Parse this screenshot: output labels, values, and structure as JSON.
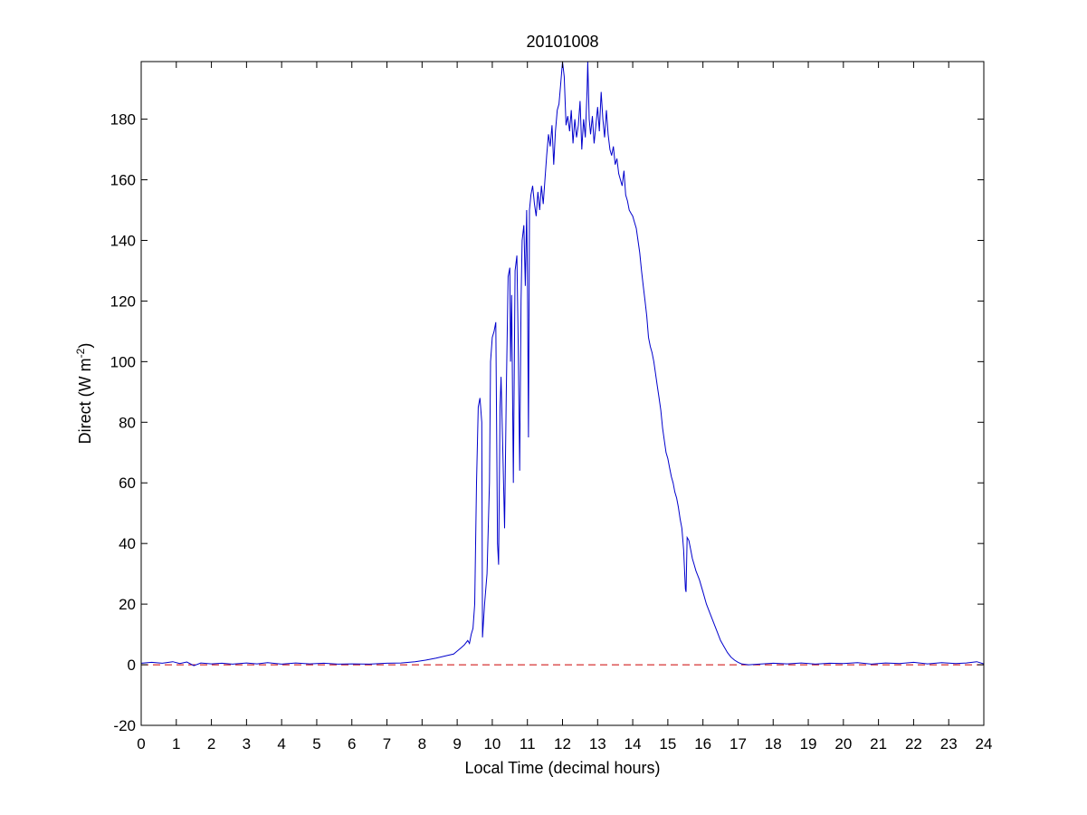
{
  "chart_data": {
    "type": "line",
    "title": "20101008",
    "xlabel": "Local Time (decimal hours)",
    "ylabel_main": "Direct (W m",
    "ylabel_superscript": "-2",
    "ylabel_close": ")",
    "xlim": [
      0,
      24
    ],
    "ylim": [
      -20,
      199
    ],
    "x_ticks": [
      0,
      1,
      2,
      3,
      4,
      5,
      6,
      7,
      8,
      9,
      10,
      11,
      12,
      13,
      14,
      15,
      16,
      17,
      18,
      19,
      20,
      21,
      22,
      23,
      24
    ],
    "y_ticks": [
      -20,
      0,
      20,
      40,
      60,
      80,
      100,
      120,
      140,
      160,
      180
    ],
    "grid": false,
    "series": [
      {
        "color": "#0000cc",
        "style": "solid",
        "points": [
          [
            0.0,
            0.5
          ],
          [
            0.3,
            0.8
          ],
          [
            0.6,
            0.5
          ],
          [
            0.9,
            1.0
          ],
          [
            1.1,
            0.4
          ],
          [
            1.3,
            0.9
          ],
          [
            1.5,
            -0.3
          ],
          [
            1.7,
            0.6
          ],
          [
            2.0,
            0.3
          ],
          [
            2.3,
            0.5
          ],
          [
            2.6,
            0.2
          ],
          [
            3.0,
            0.6
          ],
          [
            3.3,
            0.3
          ],
          [
            3.6,
            0.7
          ],
          [
            4.0,
            0.2
          ],
          [
            4.4,
            0.6
          ],
          [
            4.8,
            0.3
          ],
          [
            5.2,
            0.5
          ],
          [
            5.6,
            0.2
          ],
          [
            6.0,
            0.3
          ],
          [
            6.5,
            0.2
          ],
          [
            7.0,
            0.5
          ],
          [
            7.4,
            0.6
          ],
          [
            7.8,
            1.0
          ],
          [
            8.1,
            1.5
          ],
          [
            8.4,
            2.2
          ],
          [
            8.7,
            3.0
          ],
          [
            8.9,
            3.5
          ],
          [
            9.0,
            4.5
          ],
          [
            9.1,
            5.5
          ],
          [
            9.2,
            6.5
          ],
          [
            9.3,
            8.0
          ],
          [
            9.35,
            7.0
          ],
          [
            9.4,
            10.0
          ],
          [
            9.45,
            12.0
          ],
          [
            9.5,
            20.0
          ],
          [
            9.55,
            60.0
          ],
          [
            9.6,
            85.0
          ],
          [
            9.65,
            88.0
          ],
          [
            9.7,
            80.0
          ],
          [
            9.72,
            9.0
          ],
          [
            9.78,
            20.0
          ],
          [
            9.85,
            30.0
          ],
          [
            9.92,
            60.0
          ],
          [
            9.95,
            100.0
          ],
          [
            10.0,
            108.0
          ],
          [
            10.05,
            110.0
          ],
          [
            10.1,
            113.0
          ],
          [
            10.15,
            40.0
          ],
          [
            10.18,
            33.0
          ],
          [
            10.22,
            85.0
          ],
          [
            10.25,
            95.0
          ],
          [
            10.3,
            70.0
          ],
          [
            10.35,
            45.0
          ],
          [
            10.4,
            90.0
          ],
          [
            10.45,
            128.0
          ],
          [
            10.5,
            131.0
          ],
          [
            10.52,
            100.0
          ],
          [
            10.55,
            122.0
          ],
          [
            10.6,
            60.0
          ],
          [
            10.65,
            130.0
          ],
          [
            10.7,
            135.0
          ],
          [
            10.74,
            105.0
          ],
          [
            10.78,
            64.0
          ],
          [
            10.82,
            120.0
          ],
          [
            10.85,
            140.0
          ],
          [
            10.9,
            145.0
          ],
          [
            10.94,
            125.0
          ],
          [
            10.98,
            150.0
          ],
          [
            11.0,
            130.0
          ],
          [
            11.03,
            75.0
          ],
          [
            11.06,
            150.0
          ],
          [
            11.1,
            155.0
          ],
          [
            11.15,
            158.0
          ],
          [
            11.2,
            152.0
          ],
          [
            11.25,
            148.0
          ],
          [
            11.3,
            156.0
          ],
          [
            11.35,
            150.0
          ],
          [
            11.4,
            158.0
          ],
          [
            11.45,
            152.0
          ],
          [
            11.5,
            160.0
          ],
          [
            11.55,
            168.0
          ],
          [
            11.6,
            175.0
          ],
          [
            11.65,
            171.0
          ],
          [
            11.7,
            178.0
          ],
          [
            11.75,
            165.0
          ],
          [
            11.8,
            176.0
          ],
          [
            11.85,
            183.0
          ],
          [
            11.9,
            185.0
          ],
          [
            11.95,
            192.0
          ],
          [
            12.0,
            199.0
          ],
          [
            12.05,
            194.0
          ],
          [
            12.1,
            178.0
          ],
          [
            12.15,
            181.0
          ],
          [
            12.2,
            176.0
          ],
          [
            12.25,
            183.0
          ],
          [
            12.3,
            172.0
          ],
          [
            12.35,
            180.0
          ],
          [
            12.4,
            174.0
          ],
          [
            12.45,
            178.0
          ],
          [
            12.5,
            186.0
          ],
          [
            12.55,
            170.0
          ],
          [
            12.6,
            180.0
          ],
          [
            12.65,
            174.0
          ],
          [
            12.7,
            190.0
          ],
          [
            12.72,
            199.0
          ],
          [
            12.76,
            180.0
          ],
          [
            12.8,
            175.0
          ],
          [
            12.85,
            181.0
          ],
          [
            12.9,
            172.0
          ],
          [
            12.95,
            178.0
          ],
          [
            13.0,
            184.0
          ],
          [
            13.05,
            176.0
          ],
          [
            13.1,
            189.0
          ],
          [
            13.15,
            180.0
          ],
          [
            13.2,
            174.0
          ],
          [
            13.25,
            183.0
          ],
          [
            13.3,
            175.0
          ],
          [
            13.35,
            170.0
          ],
          [
            13.4,
            168.0
          ],
          [
            13.45,
            171.0
          ],
          [
            13.5,
            165.0
          ],
          [
            13.55,
            167.0
          ],
          [
            13.6,
            162.0
          ],
          [
            13.65,
            160.0
          ],
          [
            13.7,
            158.0
          ],
          [
            13.75,
            163.0
          ],
          [
            13.8,
            155.0
          ],
          [
            13.85,
            153.0
          ],
          [
            13.9,
            150.0
          ],
          [
            13.95,
            149.0
          ],
          [
            14.0,
            148.0
          ],
          [
            14.05,
            146.0
          ],
          [
            14.1,
            144.0
          ],
          [
            14.15,
            140.0
          ],
          [
            14.2,
            136.0
          ],
          [
            14.25,
            130.0
          ],
          [
            14.3,
            125.0
          ],
          [
            14.35,
            120.0
          ],
          [
            14.4,
            115.0
          ],
          [
            14.45,
            108.0
          ],
          [
            14.5,
            105.0
          ],
          [
            14.55,
            103.0
          ],
          [
            14.6,
            100.0
          ],
          [
            14.65,
            96.0
          ],
          [
            14.7,
            92.0
          ],
          [
            14.75,
            88.0
          ],
          [
            14.8,
            84.0
          ],
          [
            14.85,
            78.0
          ],
          [
            14.9,
            74.0
          ],
          [
            14.95,
            70.0
          ],
          [
            15.0,
            68.0
          ],
          [
            15.05,
            65.0
          ],
          [
            15.1,
            62.0
          ],
          [
            15.15,
            60.0
          ],
          [
            15.2,
            57.0
          ],
          [
            15.25,
            55.0
          ],
          [
            15.3,
            52.0
          ],
          [
            15.35,
            48.0
          ],
          [
            15.4,
            45.0
          ],
          [
            15.45,
            38.0
          ],
          [
            15.5,
            25.0
          ],
          [
            15.52,
            24.0
          ],
          [
            15.55,
            42.0
          ],
          [
            15.6,
            41.0
          ],
          [
            15.65,
            38.0
          ],
          [
            15.7,
            35.0
          ],
          [
            15.75,
            33.0
          ],
          [
            15.8,
            31.0
          ],
          [
            15.9,
            28.0
          ],
          [
            16.0,
            24.0
          ],
          [
            16.1,
            20.0
          ],
          [
            16.2,
            17.0
          ],
          [
            16.3,
            14.0
          ],
          [
            16.4,
            11.0
          ],
          [
            16.5,
            8.0
          ],
          [
            16.6,
            6.0
          ],
          [
            16.7,
            4.0
          ],
          [
            16.8,
            2.5
          ],
          [
            16.9,
            1.5
          ],
          [
            17.0,
            0.8
          ],
          [
            17.1,
            0.3
          ],
          [
            17.3,
            0.0
          ],
          [
            17.6,
            0.2
          ],
          [
            18.0,
            0.5
          ],
          [
            18.4,
            0.3
          ],
          [
            18.8,
            0.6
          ],
          [
            19.2,
            0.2
          ],
          [
            19.6,
            0.5
          ],
          [
            20.0,
            0.4
          ],
          [
            20.4,
            0.7
          ],
          [
            20.8,
            0.2
          ],
          [
            21.2,
            0.6
          ],
          [
            21.6,
            0.4
          ],
          [
            22.0,
            0.8
          ],
          [
            22.4,
            0.3
          ],
          [
            22.8,
            0.7
          ],
          [
            23.2,
            0.4
          ],
          [
            23.5,
            0.6
          ],
          [
            23.8,
            1.0
          ],
          [
            24.0,
            0.3
          ]
        ]
      },
      {
        "color": "#cc0000",
        "style": "dashed",
        "points": [
          [
            0,
            0
          ],
          [
            24,
            0
          ]
        ]
      }
    ]
  }
}
